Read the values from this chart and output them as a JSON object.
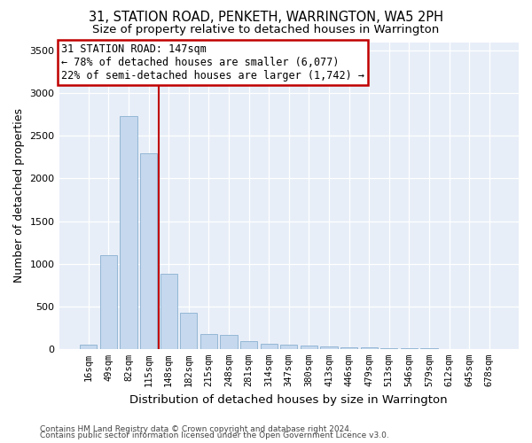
{
  "title": "31, STATION ROAD, PENKETH, WARRINGTON, WA5 2PH",
  "subtitle": "Size of property relative to detached houses in Warrington",
  "xlabel": "Distribution of detached houses by size in Warrington",
  "ylabel": "Number of detached properties",
  "categories": [
    "16sqm",
    "49sqm",
    "82sqm",
    "115sqm",
    "148sqm",
    "182sqm",
    "215sqm",
    "248sqm",
    "281sqm",
    "314sqm",
    "347sqm",
    "380sqm",
    "413sqm",
    "446sqm",
    "479sqm",
    "513sqm",
    "546sqm",
    "579sqm",
    "612sqm",
    "645sqm",
    "678sqm"
  ],
  "values": [
    55,
    1100,
    2730,
    2300,
    880,
    420,
    175,
    165,
    95,
    65,
    50,
    35,
    25,
    20,
    15,
    10,
    7,
    5,
    3,
    2,
    1
  ],
  "bar_color": "#c5d8ed",
  "bar_edge_color": "#8ab0d0",
  "vline_color": "#c00000",
  "annotation_box_color": "#c00000",
  "ylim": [
    0,
    3600
  ],
  "yticks": [
    0,
    500,
    1000,
    1500,
    2000,
    2500,
    3000,
    3500
  ],
  "footer1": "Contains HM Land Registry data © Crown copyright and database right 2024.",
  "footer2": "Contains public sector information licensed under the Open Government Licence v3.0.",
  "plot_bg_color": "#e8eef8",
  "title_fontsize": 10.5,
  "subtitle_fontsize": 9.5,
  "axis_label_fontsize": 9,
  "tick_fontsize": 7.5,
  "footer_fontsize": 6.5,
  "annotation_fontsize": 8.5
}
